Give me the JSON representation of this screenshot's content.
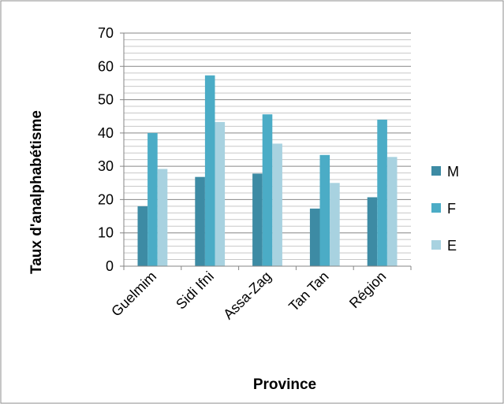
{
  "chart_data": {
    "type": "bar",
    "title": "",
    "xlabel": "Province",
    "ylabel": "Taux d'analphabétisme",
    "categories": [
      "Guelmim",
      "Sidi Ifni",
      "Assa-Zag",
      "Tan Tan",
      "Région"
    ],
    "series": [
      {
        "name": "M",
        "color": "#3d8ba4",
        "values": [
          18,
          26.8,
          27.8,
          17.3,
          20.7
        ]
      },
      {
        "name": "F",
        "color": "#4bacc6",
        "values": [
          40,
          57.3,
          45.6,
          33.4,
          44
        ]
      },
      {
        "name": "E",
        "color": "#a8d2e0",
        "values": [
          29.2,
          43.3,
          36.8,
          25,
          32.8
        ]
      }
    ],
    "ylim": [
      0,
      70
    ],
    "yticks": [
      0,
      10,
      20,
      30,
      40,
      50,
      60,
      70
    ],
    "minor_gridlines": true,
    "grid": true,
    "legend": "right"
  }
}
